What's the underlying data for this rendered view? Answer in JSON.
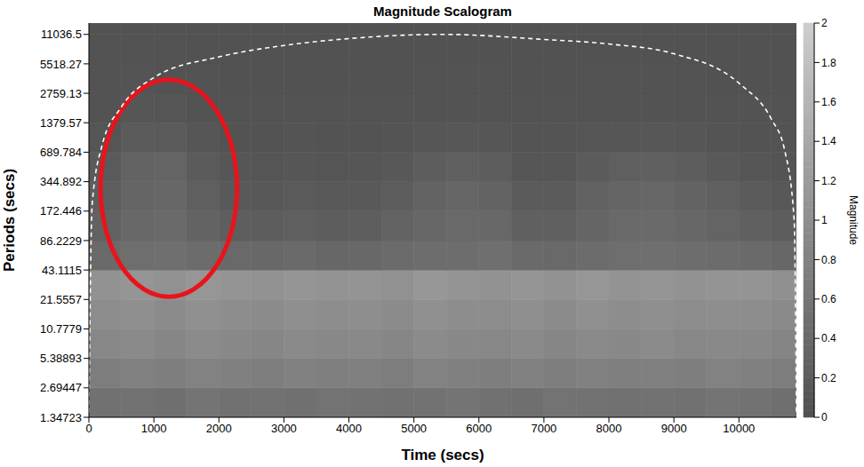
{
  "chart_data": {
    "type": "heatmap",
    "title": "Magnitude Scalogram",
    "x_label": "Time (secs)",
    "y_label": "Periods (secs)",
    "log": "y",
    "xlim": [
      0,
      10885
    ],
    "xticks": [
      0,
      1000,
      2000,
      3000,
      4000,
      5000,
      6000,
      7000,
      8000,
      9000,
      10000
    ],
    "ylim": [
      1.34723,
      14400
    ],
    "yticks": [
      1.34723,
      2.69447,
      5.38893,
      10.7779,
      21.5557,
      43.1115,
      86.2229,
      172.446,
      344.892,
      689.784,
      1379.57,
      2759.13,
      5518.27,
      11036.5
    ],
    "heatmap": {
      "x_edges": [
        0,
        500,
        1000,
        1500,
        2000,
        2500,
        3000,
        3500,
        4000,
        4500,
        5000,
        5500,
        6000,
        6500,
        7000,
        7500,
        8000,
        8500,
        9000,
        9500,
        10000,
        10500,
        10885
      ],
      "y_edges": [
        1.34723,
        2.69447,
        5.38893,
        10.7779,
        21.5557,
        43.1115,
        86.2229,
        172.446,
        344.892,
        689.784,
        1379.57,
        2759.13,
        5518.27,
        11036.5,
        14400
      ],
      "values": [
        [
          0.52,
          0.55,
          0.5,
          0.57,
          0.53,
          0.55,
          0.51,
          0.56,
          0.54,
          0.52,
          0.55,
          0.57,
          0.53,
          0.5,
          0.56,
          0.54,
          0.52,
          0.55,
          0.53,
          0.57,
          0.54,
          0.5
        ],
        [
          0.72,
          0.78,
          0.74,
          0.8,
          0.76,
          0.73,
          0.79,
          0.75,
          0.77,
          0.72,
          0.8,
          0.76,
          0.74,
          0.78,
          0.73,
          0.79,
          0.75,
          0.77,
          0.74,
          0.8,
          0.76,
          0.72
        ],
        [
          0.88,
          0.92,
          0.86,
          0.94,
          0.9,
          0.87,
          0.93,
          0.89,
          0.91,
          0.86,
          0.95,
          0.9,
          0.88,
          0.93,
          0.87,
          0.92,
          0.89,
          0.94,
          0.88,
          0.91,
          0.9,
          0.85
        ],
        [
          0.96,
          1.0,
          0.94,
          1.02,
          0.98,
          0.95,
          1.01,
          0.97,
          0.99,
          0.94,
          1.03,
          0.98,
          0.96,
          1.0,
          0.95,
          1.02,
          0.97,
          1.01,
          0.96,
          0.99,
          0.98,
          0.93
        ],
        [
          1.06,
          1.1,
          1.04,
          1.12,
          1.08,
          1.05,
          1.11,
          1.07,
          1.09,
          1.04,
          1.13,
          1.08,
          1.06,
          1.1,
          1.05,
          1.12,
          1.07,
          1.11,
          1.06,
          1.09,
          1.08,
          1.03
        ],
        [
          0.42,
          0.48,
          0.5,
          0.44,
          0.4,
          0.38,
          0.41,
          0.37,
          0.39,
          0.43,
          0.47,
          0.46,
          0.49,
          0.42,
          0.4,
          0.45,
          0.48,
          0.5,
          0.47,
          0.44,
          0.41,
          0.36
        ],
        [
          0.28,
          0.38,
          0.42,
          0.3,
          0.22,
          0.2,
          0.24,
          0.21,
          0.23,
          0.3,
          0.36,
          0.4,
          0.38,
          0.26,
          0.25,
          0.34,
          0.4,
          0.42,
          0.37,
          0.32,
          0.26,
          0.2
        ],
        [
          0.22,
          0.34,
          0.36,
          0.24,
          0.15,
          0.13,
          0.16,
          0.14,
          0.15,
          0.2,
          0.3,
          0.35,
          0.3,
          0.18,
          0.17,
          0.28,
          0.34,
          0.36,
          0.3,
          0.25,
          0.18,
          0.12
        ],
        [
          0.16,
          0.3,
          0.32,
          0.18,
          0.09,
          0.08,
          0.1,
          0.08,
          0.09,
          0.12,
          0.2,
          0.24,
          0.2,
          0.1,
          0.1,
          0.18,
          0.24,
          0.26,
          0.2,
          0.14,
          0.1,
          0.07
        ],
        [
          0.08,
          0.18,
          0.16,
          0.1,
          0.05,
          0.05,
          0.06,
          0.05,
          0.05,
          0.06,
          0.09,
          0.11,
          0.09,
          0.06,
          0.06,
          0.08,
          0.1,
          0.11,
          0.09,
          0.07,
          0.05,
          0.04
        ],
        [
          0.05,
          0.09,
          0.08,
          0.05,
          0.04,
          0.04,
          0.04,
          0.04,
          0.04,
          0.04,
          0.05,
          0.05,
          0.05,
          0.04,
          0.04,
          0.05,
          0.05,
          0.05,
          0.05,
          0.04,
          0.04,
          0.04
        ],
        [
          0.04,
          0.06,
          0.05,
          0.04,
          0.03,
          0.03,
          0.03,
          0.03,
          0.03,
          0.03,
          0.04,
          0.04,
          0.04,
          0.03,
          0.03,
          0.04,
          0.04,
          0.04,
          0.04,
          0.03,
          0.03,
          0.03
        ],
        [
          0.04,
          0.04,
          0.04,
          0.03,
          0.03,
          0.03,
          0.03,
          0.03,
          0.03,
          0.03,
          0.03,
          0.03,
          0.03,
          0.03,
          0.03,
          0.03,
          0.03,
          0.03,
          0.03,
          0.03,
          0.03,
          0.03
        ],
        [
          0.03,
          0.03,
          0.03,
          0.03,
          0.03,
          0.03,
          0.03,
          0.03,
          0.03,
          0.03,
          0.03,
          0.03,
          0.03,
          0.03,
          0.03,
          0.03,
          0.03,
          0.03,
          0.03,
          0.03,
          0.03,
          0.03
        ]
      ]
    },
    "colorbar": {
      "label": "Magnitude",
      "range": [
        0,
        2
      ],
      "ticks": [
        0,
        0.2,
        0.4,
        0.6,
        0.8,
        1,
        1.2,
        1.4,
        1.6,
        1.8,
        2
      ]
    },
    "cone_of_influence": {
      "x": [
        0,
        50,
        200,
        500,
        1000,
        2000,
        3000,
        4000,
        5440,
        7000,
        8000,
        9000,
        10000,
        10500,
        10700,
        10850,
        10885
      ],
      "y": [
        1.5,
        200,
        800,
        2000,
        4000,
        6500,
        8500,
        10000,
        11036.5,
        9800,
        8800,
        7000,
        3500,
        1500,
        740,
        140,
        1.5
      ],
      "color": "#ffffff",
      "line_style": "dashed"
    },
    "annotation_ellipse": {
      "xlim": [
        180,
        2280
      ],
      "ylim": [
        23,
        3800
      ],
      "color": "#e8141c"
    }
  }
}
